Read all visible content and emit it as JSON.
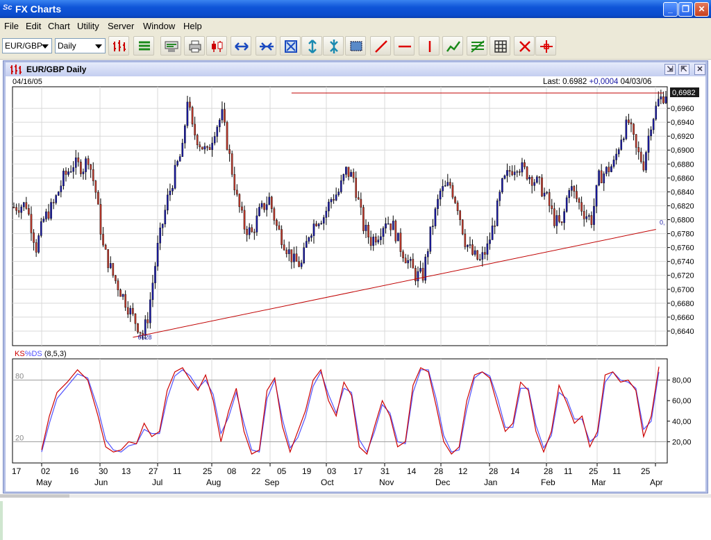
{
  "window": {
    "title": "FX Charts"
  },
  "menu": [
    "File",
    "Edit",
    "Chart",
    "Utility",
    "Server",
    "Window",
    "Help"
  ],
  "toolbar": {
    "symbol": "EUR/GBP",
    "period": "Daily"
  },
  "chart_window": {
    "title": "EUR/GBP Daily"
  },
  "colors": {
    "bull_candle": "#1a1aa6",
    "bear_candle": "#c0392b",
    "trendline": "#c00000",
    "stoch_k": "#cc0000",
    "stoch_d": "#5050ff"
  },
  "chart_data": [
    {
      "type": "candlestick",
      "start_label": "04/16/05",
      "last_label": "Last:",
      "last_value": "0.6982",
      "change": "+0,0004",
      "end_label": "04/03/06",
      "current_price_tag": "0,6982",
      "low_annotation": "6628",
      "right_annotation": "0,",
      "ylim": [
        0.662,
        0.699
      ],
      "y_ticks": [
        "0,6640",
        "0,6660",
        "0,6680",
        "0,6700",
        "0,6720",
        "0,6740",
        "0,6760",
        "0,6780",
        "0,6800",
        "0,6820",
        "0,6840",
        "0,6860",
        "0,6880",
        "0,6900",
        "0,6920",
        "0,6940",
        "0,6960"
      ],
      "trendlines": [
        {
          "from": [
            0,
            0.6631
          ],
          "to": [
            237,
            0.6786
          ]
        },
        {
          "from": [
            64,
            0.6982
          ],
          "to": [
            240,
            0.6982
          ]
        }
      ],
      "close_path": [
        [
          0,
          0.6818
        ],
        [
          5,
          0.6822
        ],
        [
          9,
          0.676
        ],
        [
          12,
          0.68
        ],
        [
          16,
          0.6822
        ],
        [
          20,
          0.686
        ],
        [
          24,
          0.688
        ],
        [
          28,
          0.6875
        ],
        [
          30,
          0.689
        ],
        [
          33,
          0.684
        ],
        [
          36,
          0.676
        ],
        [
          40,
          0.672
        ],
        [
          44,
          0.669
        ],
        [
          48,
          0.666
        ],
        [
          52,
          0.6635
        ],
        [
          54,
          0.666
        ],
        [
          58,
          0.676
        ],
        [
          62,
          0.683
        ],
        [
          66,
          0.688
        ],
        [
          68,
          0.69
        ],
        [
          70,
          0.6975
        ],
        [
          72,
          0.693
        ],
        [
          75,
          0.691
        ],
        [
          78,
          0.6895
        ],
        [
          81,
          0.693
        ],
        [
          84,
          0.695
        ],
        [
          87,
          0.689
        ],
        [
          90,
          0.683
        ],
        [
          93,
          0.679
        ],
        [
          96,
          0.678
        ],
        [
          99,
          0.681
        ],
        [
          103,
          0.683
        ],
        [
          106,
          0.679
        ],
        [
          110,
          0.676
        ],
        [
          113,
          0.674
        ],
        [
          116,
          0.6735
        ],
        [
          119,
          0.678
        ],
        [
          122,
          0.68
        ],
        [
          125,
          0.6805
        ],
        [
          128,
          0.683
        ],
        [
          131,
          0.684
        ],
        [
          134,
          0.687
        ],
        [
          137,
          0.686
        ],
        [
          141,
          0.679
        ],
        [
          144,
          0.677
        ],
        [
          147,
          0.678
        ],
        [
          150,
          0.68
        ],
        [
          153,
          0.679
        ],
        [
          156,
          0.676
        ],
        [
          159,
          0.674
        ],
        [
          162,
          0.672
        ],
        [
          165,
          0.672
        ],
        [
          168,
          0.678
        ],
        [
          172,
          0.684
        ],
        [
          176,
          0.685
        ],
        [
          179,
          0.682
        ],
        [
          182,
          0.677
        ],
        [
          185,
          0.675
        ],
        [
          188,
          0.674
        ],
        [
          191,
          0.676
        ],
        [
          194,
          0.68
        ],
        [
          197,
          0.685
        ],
        [
          200,
          0.687
        ],
        [
          203,
          0.688
        ],
        [
          206,
          0.687
        ],
        [
          209,
          0.686
        ],
        [
          212,
          0.685
        ],
        [
          215,
          0.683
        ],
        [
          218,
          0.68
        ],
        [
          221,
          0.679
        ],
        [
          224,
          0.685
        ],
        [
          227,
          0.683
        ],
        [
          230,
          0.681
        ],
        [
          233,
          0.68
        ],
        [
          236,
          0.686
        ],
        [
          239,
          0.687
        ],
        [
          242,
          0.688
        ],
        [
          245,
          0.692
        ],
        [
          248,
          0.694
        ],
        [
          251,
          0.69
        ],
        [
          254,
          0.688
        ],
        [
          257,
          0.694
        ],
        [
          260,
          0.697
        ],
        [
          263,
          0.6982
        ]
      ]
    },
    {
      "type": "line",
      "title_k": "KS",
      "title_d": "%DS",
      "params": "(8,5,3)",
      "ylim": [
        0,
        100
      ],
      "y_ticks": [
        "20,00",
        "40,00",
        "60,00",
        "80,00"
      ],
      "level_labels": [
        "80",
        "20"
      ],
      "levels": [
        80,
        20
      ],
      "k_path": [
        [
          0,
          12
        ],
        [
          3,
          45
        ],
        [
          6,
          68
        ],
        [
          10,
          78
        ],
        [
          14,
          90
        ],
        [
          18,
          80
        ],
        [
          22,
          45
        ],
        [
          25,
          15
        ],
        [
          28,
          10
        ],
        [
          31,
          12
        ],
        [
          34,
          20
        ],
        [
          37,
          18
        ],
        [
          40,
          38
        ],
        [
          43,
          25
        ],
        [
          46,
          30
        ],
        [
          49,
          70
        ],
        [
          52,
          88
        ],
        [
          55,
          92
        ],
        [
          58,
          80
        ],
        [
          61,
          70
        ],
        [
          64,
          85
        ],
        [
          67,
          60
        ],
        [
          70,
          20
        ],
        [
          73,
          50
        ],
        [
          76,
          72
        ],
        [
          79,
          30
        ],
        [
          82,
          8
        ],
        [
          85,
          12
        ],
        [
          88,
          70
        ],
        [
          91,
          82
        ],
        [
          94,
          35
        ],
        [
          97,
          10
        ],
        [
          100,
          30
        ],
        [
          103,
          50
        ],
        [
          106,
          80
        ],
        [
          109,
          90
        ],
        [
          112,
          60
        ],
        [
          115,
          45
        ],
        [
          118,
          78
        ],
        [
          121,
          65
        ],
        [
          124,
          15
        ],
        [
          127,
          8
        ],
        [
          130,
          35
        ],
        [
          133,
          60
        ],
        [
          136,
          45
        ],
        [
          139,
          15
        ],
        [
          142,
          20
        ],
        [
          145,
          75
        ],
        [
          148,
          92
        ],
        [
          151,
          88
        ],
        [
          154,
          55
        ],
        [
          157,
          20
        ],
        [
          160,
          8
        ],
        [
          163,
          15
        ],
        [
          166,
          60
        ],
        [
          169,
          85
        ],
        [
          172,
          88
        ],
        [
          175,
          82
        ],
        [
          178,
          55
        ],
        [
          181,
          30
        ],
        [
          184,
          38
        ],
        [
          187,
          78
        ],
        [
          190,
          70
        ],
        [
          193,
          30
        ],
        [
          196,
          10
        ],
        [
          199,
          30
        ],
        [
          202,
          75
        ],
        [
          205,
          58
        ],
        [
          208,
          38
        ],
        [
          211,
          45
        ],
        [
          214,
          15
        ],
        [
          217,
          30
        ],
        [
          220,
          85
        ],
        [
          223,
          88
        ],
        [
          226,
          78
        ],
        [
          229,
          80
        ],
        [
          232,
          70
        ],
        [
          235,
          25
        ],
        [
          238,
          45
        ],
        [
          241,
          93
        ]
      ],
      "d_path": [
        [
          0,
          10
        ],
        [
          3,
          38
        ],
        [
          6,
          62
        ],
        [
          10,
          74
        ],
        [
          14,
          86
        ],
        [
          18,
          82
        ],
        [
          22,
          52
        ],
        [
          25,
          22
        ],
        [
          28,
          12
        ],
        [
          31,
          10
        ],
        [
          34,
          16
        ],
        [
          37,
          18
        ],
        [
          40,
          32
        ],
        [
          43,
          28
        ],
        [
          46,
          28
        ],
        [
          49,
          62
        ],
        [
          52,
          84
        ],
        [
          55,
          90
        ],
        [
          58,
          84
        ],
        [
          61,
          72
        ],
        [
          64,
          80
        ],
        [
          67,
          66
        ],
        [
          70,
          28
        ],
        [
          73,
          44
        ],
        [
          76,
          68
        ],
        [
          79,
          38
        ],
        [
          82,
          12
        ],
        [
          85,
          10
        ],
        [
          88,
          62
        ],
        [
          91,
          80
        ],
        [
          94,
          42
        ],
        [
          97,
          14
        ],
        [
          100,
          24
        ],
        [
          103,
          44
        ],
        [
          106,
          74
        ],
        [
          109,
          88
        ],
        [
          112,
          66
        ],
        [
          115,
          48
        ],
        [
          118,
          72
        ],
        [
          121,
          68
        ],
        [
          124,
          22
        ],
        [
          127,
          10
        ],
        [
          130,
          30
        ],
        [
          133,
          56
        ],
        [
          136,
          48
        ],
        [
          139,
          20
        ],
        [
          142,
          18
        ],
        [
          145,
          68
        ],
        [
          148,
          90
        ],
        [
          151,
          90
        ],
        [
          154,
          62
        ],
        [
          157,
          26
        ],
        [
          160,
          10
        ],
        [
          163,
          12
        ],
        [
          166,
          52
        ],
        [
          169,
          82
        ],
        [
          172,
          88
        ],
        [
          175,
          84
        ],
        [
          178,
          62
        ],
        [
          181,
          34
        ],
        [
          184,
          34
        ],
        [
          187,
          72
        ],
        [
          190,
          72
        ],
        [
          193,
          36
        ],
        [
          196,
          14
        ],
        [
          199,
          26
        ],
        [
          202,
          68
        ],
        [
          205,
          62
        ],
        [
          208,
          42
        ],
        [
          211,
          42
        ],
        [
          214,
          20
        ],
        [
          217,
          26
        ],
        [
          220,
          78
        ],
        [
          223,
          88
        ],
        [
          226,
          80
        ],
        [
          229,
          78
        ],
        [
          232,
          72
        ],
        [
          235,
          32
        ],
        [
          238,
          40
        ],
        [
          241,
          88
        ]
      ]
    },
    {
      "type": "axis",
      "day_ticks": [
        "17",
        "02",
        "16",
        "30",
        "13",
        "27",
        "11",
        "25",
        "08",
        "22",
        "05",
        "19",
        "03",
        "17",
        "31",
        "14",
        "28",
        "12",
        "28",
        "14",
        "28",
        "11",
        "25",
        "11",
        "25"
      ],
      "month_labels": [
        "May",
        "Jun",
        "Jul",
        "Aug",
        "Sep",
        "Oct",
        "Nov",
        "Dec",
        "Jan",
        "Feb",
        "Mar",
        "Apr"
      ]
    }
  ]
}
